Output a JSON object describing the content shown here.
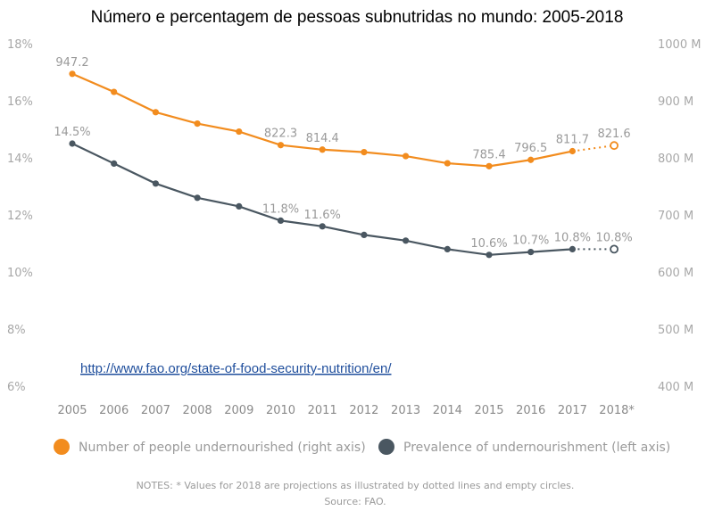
{
  "chart_data": {
    "type": "line",
    "title": "Número e percentagem de pessoas subnutridas no mundo: 2005-2018",
    "categories": [
      "2005",
      "2006",
      "2007",
      "2008",
      "2009",
      "2010",
      "2011",
      "2012",
      "2013",
      "2014",
      "2015",
      "2016",
      "2017",
      "2018*"
    ],
    "left_axis": {
      "ticks": [
        "18%",
        "16%",
        "14%",
        "12%",
        "10%",
        "8%",
        "6%"
      ],
      "range": [
        6,
        18
      ]
    },
    "right_axis": {
      "ticks": [
        "1000 M",
        "900 M",
        "800 M",
        "700 M",
        "600 M",
        "500 M",
        "400 M"
      ],
      "range": [
        400,
        1000
      ]
    },
    "series": [
      {
        "name": "Number of people undernourished (right axis)",
        "axis": "right",
        "color": "#f28c1e",
        "values": [
          947.2,
          915.5,
          880.0,
          860.0,
          846.0,
          822.3,
          814.4,
          810.0,
          803.0,
          790.5,
          785.4,
          796.5,
          811.7,
          821.6
        ],
        "labels": {
          "0": "947.2",
          "5": "822.3",
          "6": "814.4",
          "10": "785.4",
          "11": "796.5",
          "12": "811.7",
          "13": "821.6"
        }
      },
      {
        "name": "Prevalence of undernourishment (left axis)",
        "axis": "left",
        "color": "#4a5761",
        "values": [
          14.5,
          13.8,
          13.1,
          12.6,
          12.3,
          11.8,
          11.6,
          11.3,
          11.1,
          10.8,
          10.6,
          10.7,
          10.8,
          10.8
        ],
        "labels": {
          "0": "14.5%",
          "5": "11.8%",
          "6": "11.6%",
          "10": "10.6%",
          "11": "10.7%",
          "12": "10.8%",
          "13": "10.8%"
        }
      }
    ],
    "projected_from_index": 12,
    "legend_position": "bottom",
    "grid": false
  },
  "link_text": "http://www.fao.org/state-of-food-security-nutrition/en/",
  "notes": "NOTES: * Values for 2018 are projections as illustrated by dotted lines and empty circles.",
  "source": "Source: FAO."
}
